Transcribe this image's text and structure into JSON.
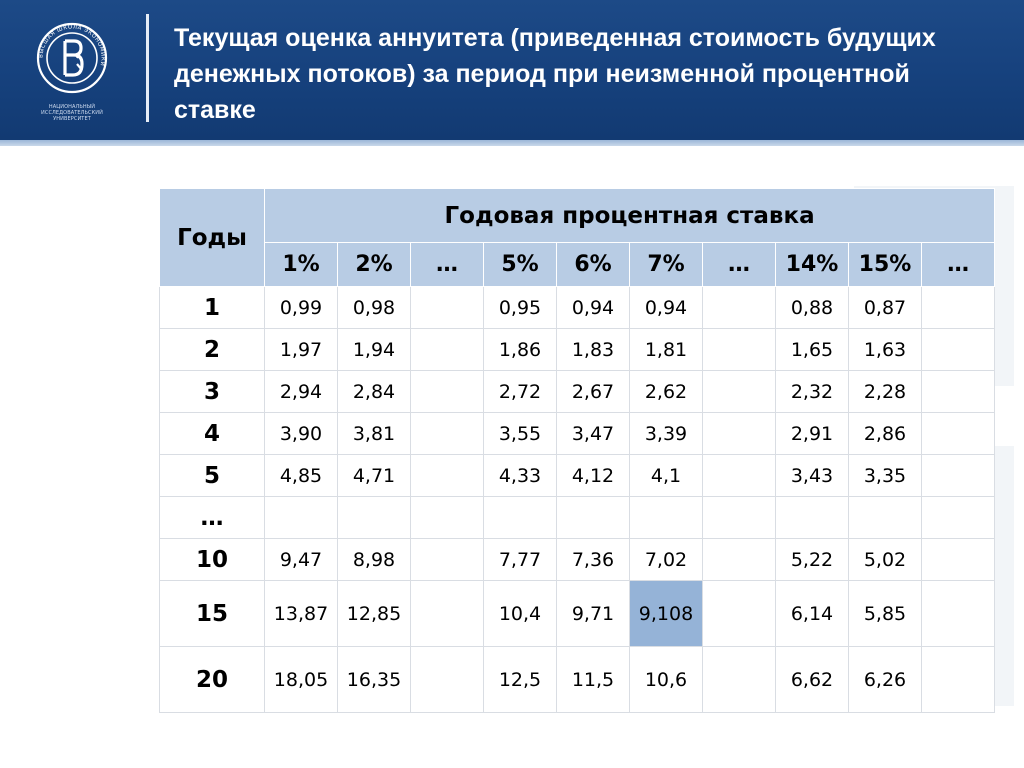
{
  "slide": {
    "title": "Текущая оценка аннуитета (приведенная стоимость будущих денежных потоков) за период при неизменной процентной ставке",
    "logo_caption": "НАЦИОНАЛЬНЫЙ ИССЛЕДОВАТЕЛЬСКИЙ УНИВЕРСИТЕТ",
    "logo_ring_text": "ВЫСШАЯ ШКОЛА ЭКОНОМИКИ",
    "header_color": "#16417d"
  },
  "table": {
    "years_header": "Годы",
    "rate_header": "Годовая процентная ставка",
    "rates": [
      "1%",
      "2%",
      "…",
      "5%",
      "6%",
      "7%",
      "…",
      "14%",
      "15%",
      "…"
    ],
    "rows": [
      {
        "year": "1",
        "values": [
          "0,99",
          "0,98",
          "",
          "0,95",
          "0,94",
          "0,94",
          "",
          "0,88",
          "0,87",
          ""
        ]
      },
      {
        "year": "2",
        "values": [
          "1,97",
          "1,94",
          "",
          "1,86",
          "1,83",
          "1,81",
          "",
          "1,65",
          "1,63",
          ""
        ]
      },
      {
        "year": "3",
        "values": [
          "2,94",
          "2,84",
          "",
          "2,72",
          "2,67",
          "2,62",
          "",
          "2,32",
          "2,28",
          ""
        ]
      },
      {
        "year": "4",
        "values": [
          "3,90",
          "3,81",
          "",
          "3,55",
          "3,47",
          "3,39",
          "",
          "2,91",
          "2,86",
          ""
        ]
      },
      {
        "year": "5",
        "values": [
          "4,85",
          "4,71",
          "",
          "4,33",
          "4,12",
          "4,1",
          "",
          "3,43",
          "3,35",
          ""
        ]
      },
      {
        "year": "…",
        "values": [
          "",
          "",
          "",
          "",
          "",
          "",
          "",
          "",
          "",
          ""
        ]
      },
      {
        "year": "10",
        "values": [
          "9,47",
          "8,98",
          "",
          "7,77",
          "7,36",
          "7,02",
          "",
          "5,22",
          "5,02",
          ""
        ]
      },
      {
        "year": "15",
        "values": [
          "13,87",
          "12,85",
          "",
          "10,4",
          "9,71",
          "9,108",
          "",
          "6,14",
          "5,85",
          ""
        ]
      },
      {
        "year": "20",
        "values": [
          "18,05",
          "16,35",
          "",
          "12,5",
          "11,5",
          "10,6",
          "",
          "6,62",
          "6,26",
          ""
        ]
      }
    ],
    "highlight": {
      "row": 7,
      "col": 5,
      "color": "#95b3d7"
    }
  }
}
